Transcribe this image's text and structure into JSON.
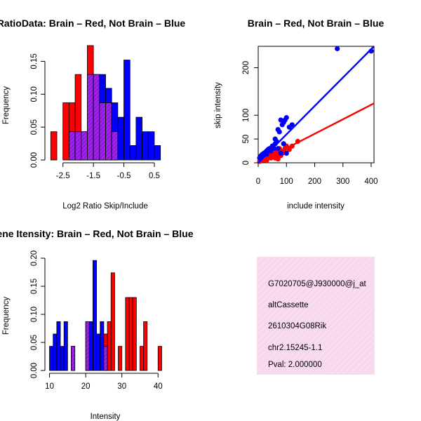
{
  "chart_data": [
    {
      "id": "ratio_hist",
      "type": "histogram",
      "title": "RatioData: Brain – Red, Not Brain – Blue",
      "xlabel": "Log2 Ratio Skip/Include",
      "ylabel": "Frequency",
      "xlim": [
        -3.0,
        0.8
      ],
      "ylim": [
        0,
        0.175
      ],
      "xticks": [
        -2.5,
        -1.5,
        -0.5,
        0.5
      ],
      "xtick_labels": [
        "-2.5",
        "-1.5",
        "-0.5",
        "0.5"
      ],
      "yticks": [
        0.0,
        0.05,
        0.1,
        0.15
      ],
      "ytick_labels": [
        "0.00",
        "0.05",
        "0.10",
        "0.15"
      ],
      "bins": [
        -2.9,
        -2.7,
        -2.5,
        -2.3,
        -2.1,
        -1.9,
        -1.7,
        -1.5,
        -1.3,
        -1.1,
        -0.9,
        -0.7,
        -0.5,
        -0.3,
        -0.1,
        0.1,
        0.3,
        0.5,
        0.7
      ],
      "series": [
        {
          "name": "Brain",
          "color": "#ff0000",
          "values": [
            0.043,
            0,
            0.087,
            0.087,
            0.13,
            0.043,
            0.174,
            0.13,
            0.087,
            0.087,
            0.043,
            0,
            0,
            0,
            0,
            0,
            0,
            0
          ]
        },
        {
          "name": "Not Brain",
          "color": "#0000ff",
          "values": [
            0,
            0,
            0,
            0.043,
            0.043,
            0.043,
            0.13,
            0.13,
            0.13,
            0.109,
            0.087,
            0.065,
            0.152,
            0.022,
            0.065,
            0.043,
            0.043,
            0.022
          ]
        }
      ],
      "overlap_color": "#a020f0"
    },
    {
      "id": "intensity_scatter",
      "type": "scatter",
      "title": "Brain – Red, Not Brain – Blue",
      "xlabel": "include intensity",
      "ylabel": "skip intensity",
      "xlim": [
        0,
        410
      ],
      "ylim": [
        0,
        245
      ],
      "xticks": [
        0,
        100,
        200,
        300,
        400
      ],
      "yticks": [
        0,
        50,
        100,
        200
      ],
      "series": [
        {
          "name": "Brain",
          "color": "#ff0000",
          "x": [
            5,
            10,
            15,
            20,
            25,
            30,
            35,
            40,
            45,
            50,
            55,
            60,
            65,
            70,
            75,
            80,
            85,
            90,
            95,
            100,
            110,
            120,
            140,
            30,
            60,
            80,
            90,
            45,
            70,
            20
          ],
          "y": [
            3,
            5,
            8,
            6,
            10,
            8,
            12,
            15,
            10,
            12,
            18,
            20,
            25,
            15,
            30,
            25,
            20,
            22,
            30,
            35,
            28,
            35,
            45,
            5,
            10,
            15,
            40,
            20,
            8,
            12
          ],
          "fit": {
            "x": [
              0,
              410
            ],
            "y": [
              0,
              125
            ]
          }
        },
        {
          "name": "Not Brain",
          "color": "#0000ff",
          "x": [
            5,
            10,
            15,
            20,
            25,
            30,
            35,
            40,
            45,
            50,
            55,
            60,
            65,
            70,
            75,
            80,
            85,
            90,
            95,
            100,
            110,
            120,
            60,
            70,
            80,
            90,
            100,
            280,
            400,
            30,
            50
          ],
          "y": [
            10,
            15,
            18,
            20,
            22,
            25,
            28,
            30,
            25,
            35,
            30,
            40,
            45,
            70,
            65,
            90,
            80,
            85,
            90,
            95,
            75,
            80,
            50,
            30,
            20,
            40,
            20,
            240,
            235,
            18,
            35
          ],
          "fit": {
            "x": [
              0,
              410
            ],
            "y": [
              0,
              245
            ]
          }
        }
      ]
    },
    {
      "id": "intensity_hist",
      "type": "histogram",
      "title": "Gene Itensity: Brain – Red, Not Brain – Blue",
      "xlabel": "Intensity",
      "ylabel": "Frequency",
      "xlim": [
        9.5,
        41.5
      ],
      "ylim": [
        0,
        0.2
      ],
      "xticks": [
        10,
        20,
        30,
        40
      ],
      "yticks": [
        0.0,
        0.05,
        0.1,
        0.15,
        0.2
      ],
      "ytick_labels": [
        "0.00",
        "0.05",
        "0.10",
        "0.15",
        "0.20"
      ],
      "bins": [
        10,
        11,
        12,
        13,
        14,
        15,
        16,
        17,
        18,
        19,
        20,
        21,
        22,
        23,
        24,
        25,
        26,
        27,
        28,
        29,
        30,
        31,
        32,
        33,
        34,
        35,
        36,
        37,
        38,
        39,
        40,
        41
      ],
      "series": [
        {
          "name": "Brain",
          "color": "#ff0000",
          "values": [
            0,
            0,
            0,
            0,
            0,
            0,
            0.043,
            0,
            0,
            0,
            0.087,
            0,
            0,
            0,
            0,
            0.065,
            0.087,
            0.174,
            0,
            0.043,
            0,
            0.13,
            0.13,
            0.13,
            0,
            0.043,
            0.087,
            0,
            0,
            0,
            0.043
          ]
        },
        {
          "name": "Not Brain",
          "color": "#0000ff",
          "values": [
            0.043,
            0.065,
            0.087,
            0.043,
            0.087,
            0,
            0.043,
            0,
            0,
            0,
            0.087,
            0.087,
            0.196,
            0.065,
            0.087,
            0.043,
            0,
            0,
            0,
            0,
            0,
            0,
            0,
            0,
            0,
            0,
            0,
            0,
            0,
            0,
            0
          ]
        }
      ],
      "overlap_color": "#a020f0"
    }
  ],
  "info_box": {
    "line1": "G7020705@J930000@j_at",
    "line2": "altCassette",
    "line3": "2610304G08Rik",
    "line4": "chr2.15245-1.1",
    "pval": "Pval: 2.000000",
    "bg_color": "#f8dbee",
    "pval_color": "#a00000"
  }
}
